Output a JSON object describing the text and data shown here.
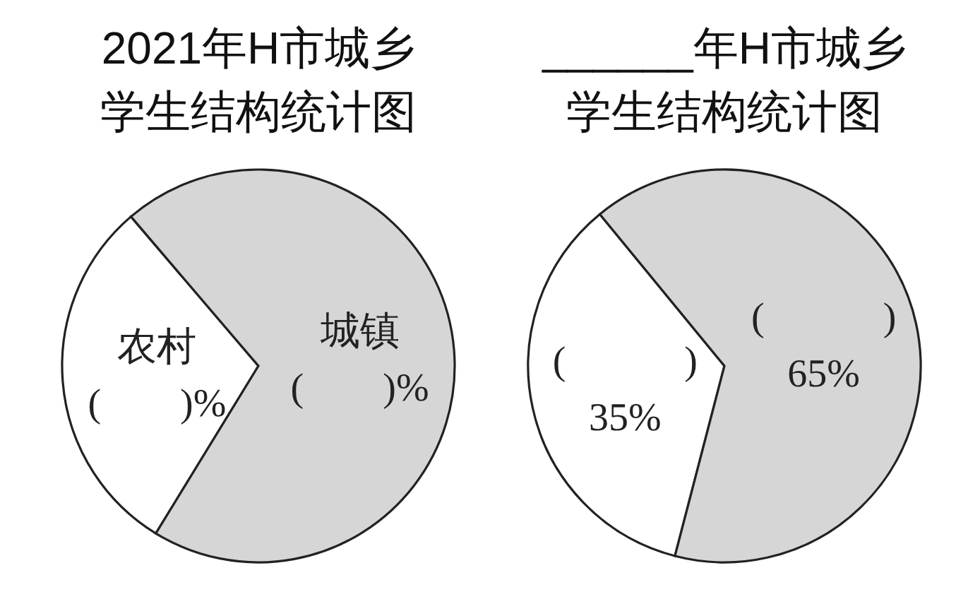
{
  "chart_data": [
    {
      "type": "pie",
      "title": "2021年H市城乡学生结构统计图",
      "categories": [
        "农村",
        "城镇"
      ],
      "values": [
        30,
        70
      ],
      "colors": [
        "#ffffff",
        "#d6d6d6"
      ],
      "value_labels": [
        "(　　)%",
        "(　　)%"
      ]
    },
    {
      "type": "pie",
      "title": "______年H市城乡学生结构统计图",
      "categories": [
        "(　　　)",
        "(　　　)"
      ],
      "values": [
        35,
        65
      ],
      "colors": [
        "#ffffff",
        "#d6d6d6"
      ],
      "value_labels": [
        "35%",
        "65%"
      ]
    }
  ]
}
